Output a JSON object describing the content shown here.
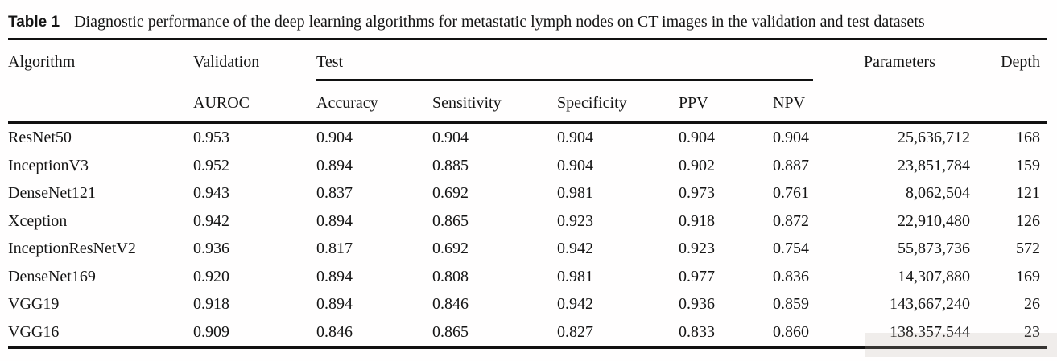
{
  "caption": {
    "label": "Table 1",
    "text": "Diagnostic performance of the deep learning algorithms for metastatic lymph nodes on CT images in the validation and test datasets"
  },
  "table": {
    "header": {
      "algorithm": "Algorithm",
      "validation_group": "Validation",
      "test_group": "Test",
      "parameters": "Parameters",
      "depth": "Depth",
      "auroc": "AUROC",
      "accuracy": "Accuracy",
      "sensitivity": "Sensitivity",
      "specificity": "Specificity",
      "ppv": "PPV",
      "npv": "NPV"
    },
    "rows": [
      {
        "algorithm": "ResNet50",
        "auroc": "0.953",
        "accuracy": "0.904",
        "sensitivity": "0.904",
        "specificity": "0.904",
        "ppv": "0.904",
        "npv": "0.904",
        "parameters": "25,636,712",
        "depth": "168"
      },
      {
        "algorithm": "InceptionV3",
        "auroc": "0.952",
        "accuracy": "0.894",
        "sensitivity": "0.885",
        "specificity": "0.904",
        "ppv": "0.902",
        "npv": "0.887",
        "parameters": "23,851,784",
        "depth": "159"
      },
      {
        "algorithm": "DenseNet121",
        "auroc": "0.943",
        "accuracy": "0.837",
        "sensitivity": "0.692",
        "specificity": "0.981",
        "ppv": "0.973",
        "npv": "0.761",
        "parameters": "8,062,504",
        "depth": "121"
      },
      {
        "algorithm": "Xception",
        "auroc": "0.942",
        "accuracy": "0.894",
        "sensitivity": "0.865",
        "specificity": "0.923",
        "ppv": "0.918",
        "npv": "0.872",
        "parameters": "22,910,480",
        "depth": "126"
      },
      {
        "algorithm": "InceptionResNetV2",
        "auroc": "0.936",
        "accuracy": "0.817",
        "sensitivity": "0.692",
        "specificity": "0.942",
        "ppv": "0.923",
        "npv": "0.754",
        "parameters": "55,873,736",
        "depth": "572"
      },
      {
        "algorithm": "DenseNet169",
        "auroc": "0.920",
        "accuracy": "0.894",
        "sensitivity": "0.808",
        "specificity": "0.981",
        "ppv": "0.977",
        "npv": "0.836",
        "parameters": "14,307,880",
        "depth": "169"
      },
      {
        "algorithm": "VGG19",
        "auroc": "0.918",
        "accuracy": "0.894",
        "sensitivity": "0.846",
        "specificity": "0.942",
        "ppv": "0.936",
        "npv": "0.859",
        "parameters": "143,667,240",
        "depth": "26"
      },
      {
        "algorithm": "VGG16",
        "auroc": "0.909",
        "accuracy": "0.846",
        "sensitivity": "0.865",
        "specificity": "0.827",
        "ppv": "0.833",
        "npv": "0.860",
        "parameters": "138.357.544",
        "depth": "23"
      }
    ]
  }
}
